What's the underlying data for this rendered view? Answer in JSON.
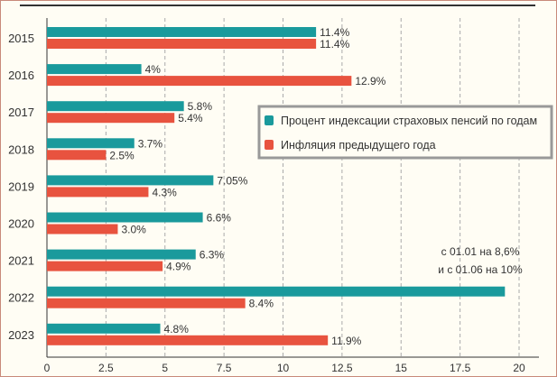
{
  "chart_data": {
    "type": "bar",
    "orientation": "horizontal",
    "categories": [
      "2015",
      "2016",
      "2017",
      "2018",
      "2019",
      "2020",
      "2021",
      "2022",
      "2023"
    ],
    "series": [
      {
        "name": "Процент индексации страховых пенсий по годам",
        "color": "#1a9a9c",
        "values": [
          11.4,
          4,
          5.8,
          3.7,
          7.05,
          6.6,
          6.3,
          19.4,
          4.8
        ],
        "labels": [
          "11.4%",
          "4%",
          "5.8%",
          "3.7%",
          "7.05%",
          "6.6%",
          "6.3%",
          "",
          "4.8%"
        ]
      },
      {
        "name": "Инфляция предыдущего года",
        "color": "#e8533f",
        "values": [
          11.4,
          12.9,
          5.4,
          2.5,
          4.3,
          3.0,
          4.9,
          8.4,
          11.9
        ],
        "labels": [
          "11.4%",
          "12.9%",
          "5.4%",
          "2.5%",
          "4.3%",
          "3.0%",
          "4.9%",
          "8.4%",
          "11.9%"
        ]
      }
    ],
    "xlim": [
      0,
      20
    ],
    "xticks": [
      "0",
      "2.5",
      "5",
      "7.5",
      "10",
      "12.5",
      "15",
      "17.5",
      "20"
    ],
    "grid": true,
    "legend_placement": "right",
    "annotation": [
      "с 01.01 на 8,6%",
      "и с 01.06 на 10%"
    ]
  }
}
